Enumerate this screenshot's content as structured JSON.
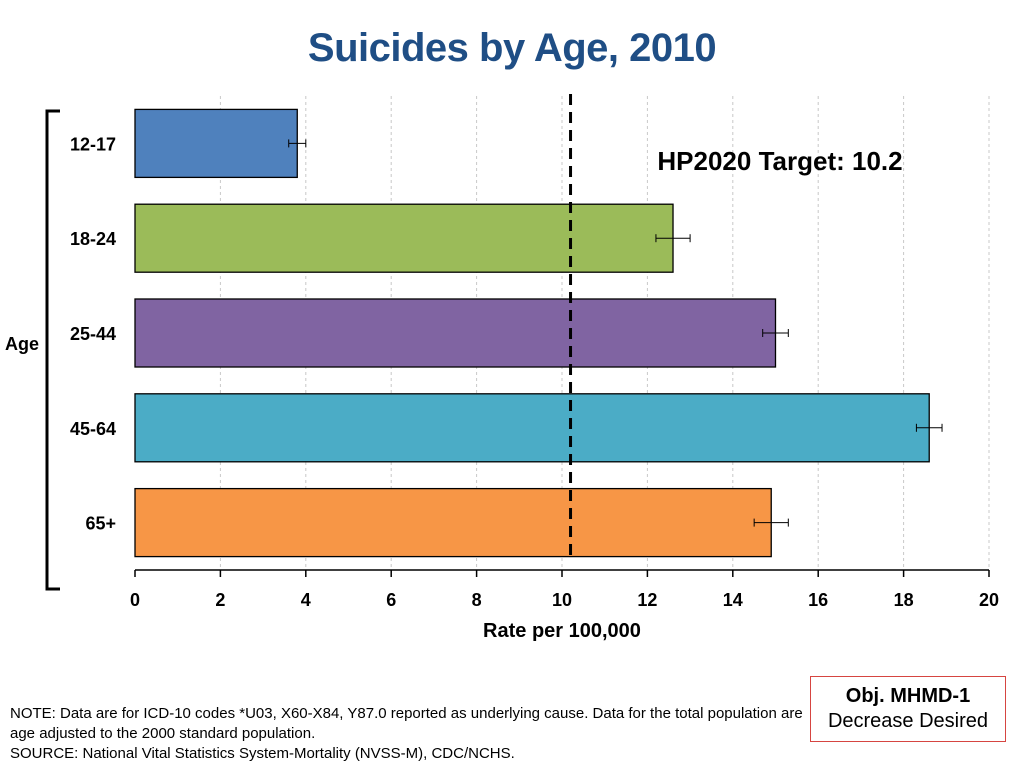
{
  "title": "Suicides by Age, 2010",
  "objective": {
    "id": "Obj. MHMD-1",
    "direction": "Decrease Desired"
  },
  "notes": {
    "note": "NOTE: Data are for ICD-10 codes *U03, X60-X84, Y87.0 reported as underlying cause. Data for the total population are age adjusted to the 2000 standard population.",
    "source": "SOURCE: National Vital Statistics System-Mortality (NVSS-M), CDC/NCHS."
  },
  "chart_data": {
    "type": "bar",
    "orientation": "horizontal",
    "title": "Suicides by Age, 2010",
    "xlabel": "Rate per 100,000",
    "ylabel": "Age",
    "xlim": [
      0,
      20
    ],
    "xticks": [
      0,
      2,
      4,
      6,
      8,
      10,
      12,
      14,
      16,
      18,
      20
    ],
    "grid": "vertical dashed",
    "categories": [
      "12-17",
      "18-24",
      "25-44",
      "45-64",
      "65+"
    ],
    "values": [
      3.8,
      12.6,
      15.0,
      18.6,
      14.9
    ],
    "errors_low": [
      3.6,
      12.2,
      14.7,
      18.3,
      14.5
    ],
    "errors_high": [
      4.0,
      13.0,
      15.3,
      18.9,
      15.3
    ],
    "colors": [
      "#4f81bd",
      "#9bbb59",
      "#8064a2",
      "#4bacc6",
      "#f79646"
    ],
    "target": {
      "value": 10.2,
      "label": "HP2020 Target: 10.2"
    }
  }
}
